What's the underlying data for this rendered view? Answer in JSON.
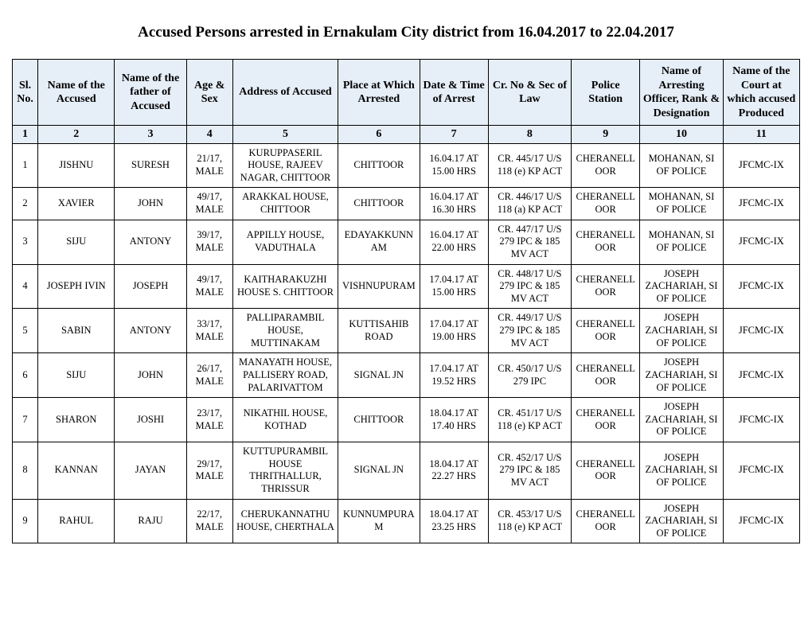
{
  "title": "Accused Persons arrested in    Ernakulam City  district from   16.04.2017 to 22.04.2017",
  "columns": {
    "c1": "Sl. No.",
    "c2": "Name of the Accused",
    "c3": "Name of the father of Accused",
    "c4": "Age & Sex",
    "c5": "Address of Accused",
    "c6": "Place at Which Arrested",
    "c7": "Date & Time of Arrest",
    "c8": "Cr. No & Sec of Law",
    "c9": "Police Station",
    "c10": "Name of Arresting Officer, Rank & Designation",
    "c11": "Name of the Court at which accused Produced"
  },
  "colnums": {
    "c1": "1",
    "c2": "2",
    "c3": "3",
    "c4": "4",
    "c5": "5",
    "c6": "6",
    "c7": "7",
    "c8": "8",
    "c9": "9",
    "c10": "10",
    "c11": "11"
  },
  "rows": [
    {
      "sl": "1",
      "name": "JISHNU",
      "father": "SURESH",
      "age": "21/17, MALE",
      "addr": "KURUPPASERIL HOUSE, RAJEEV NAGAR, CHITTOOR",
      "place": "CHITTOOR",
      "datetime": "16.04.17 AT 15.00 HRS",
      "crno": "CR. 445/17 U/S 118 (e) KP ACT",
      "ps": "CHERANELLOOR",
      "officer": "MOHANAN, SI OF POLICE",
      "court": "JFCMC-IX"
    },
    {
      "sl": "2",
      "name": "XAVIER",
      "father": "JOHN",
      "age": "49/17, MALE",
      "addr": "ARAKKAL HOUSE, CHITTOOR",
      "place": "CHITTOOR",
      "datetime": "16.04.17 AT 16.30 HRS",
      "crno": "CR. 446/17 U/S 118 (a) KP ACT",
      "ps": "CHERANELLOOR",
      "officer": "MOHANAN, SI OF POLICE",
      "court": "JFCMC-IX"
    },
    {
      "sl": "3",
      "name": "SIJU",
      "father": "ANTONY",
      "age": "39/17, MALE",
      "addr": "APPILLY HOUSE, VADUTHALA",
      "place": "EDAYAKKUNNAM",
      "datetime": "16.04.17 AT 22.00 HRS",
      "crno": "CR. 447/17 U/S 279 IPC & 185 MV ACT",
      "ps": "CHERANELLOOR",
      "officer": "MOHANAN, SI OF POLICE",
      "court": "JFCMC-IX"
    },
    {
      "sl": "4",
      "name": "JOSEPH IVIN",
      "father": "JOSEPH",
      "age": "49/17, MALE",
      "addr": "KAITHARAKUZHI HOUSE S. CHITTOOR",
      "place": "VISHNUPURAM",
      "datetime": "17.04.17 AT 15.00 HRS",
      "crno": "CR. 448/17 U/S 279 IPC & 185 MV ACT",
      "ps": "CHERANELLOOR",
      "officer": "JOSEPH ZACHARIAH, SI OF POLICE",
      "court": "JFCMC-IX"
    },
    {
      "sl": "5",
      "name": "SABIN",
      "father": "ANTONY",
      "age": "33/17, MALE",
      "addr": "PALLIPARAMBIL HOUSE, MUTTINAKAM",
      "place": "KUTTISAHIB ROAD",
      "datetime": "17.04.17 AT 19.00 HRS",
      "crno": "CR. 449/17 U/S 279 IPC & 185 MV ACT",
      "ps": "CHERANELLOOR",
      "officer": "JOSEPH ZACHARIAH, SI OF POLICE",
      "court": "JFCMC-IX"
    },
    {
      "sl": "6",
      "name": "SIJU",
      "father": "JOHN",
      "age": "26/17, MALE",
      "addr": "MANAYATH HOUSE, PALLISERY ROAD, PALARIVATTOM",
      "place": "SIGNAL JN",
      "datetime": "17.04.17 AT 19.52 HRS",
      "crno": "CR. 450/17 U/S 279 IPC",
      "ps": "CHERANELLOOR",
      "officer": "JOSEPH ZACHARIAH, SI OF POLICE",
      "court": "JFCMC-IX"
    },
    {
      "sl": "7",
      "name": "SHARON",
      "father": "JOSHI",
      "age": "23/17, MALE",
      "addr": "NIKATHIL HOUSE, KOTHAD",
      "place": "CHITTOOR",
      "datetime": "18.04.17 AT 17.40 HRS",
      "crno": "CR. 451/17 U/S 118 (e) KP ACT",
      "ps": "CHERANELLOOR",
      "officer": "JOSEPH ZACHARIAH, SI OF POLICE",
      "court": "JFCMC-IX"
    },
    {
      "sl": "8",
      "name": "KANNAN",
      "father": "JAYAN",
      "age": "29/17, MALE",
      "addr": "KUTTUPURAMBIL HOUSE THRITHALLUR, THRISSUR",
      "place": "SIGNAL JN",
      "datetime": "18.04.17 AT 22.27 HRS",
      "crno": "CR. 452/17 U/S 279 IPC & 185 MV ACT",
      "ps": "CHERANELLOOR",
      "officer": "JOSEPH ZACHARIAH, SI OF POLICE",
      "court": "JFCMC-IX"
    },
    {
      "sl": "9",
      "name": "RAHUL",
      "father": "RAJU",
      "age": "22/17, MALE",
      "addr": "CHERUKANNATHU HOUSE, CHERTHALA",
      "place": "KUNNUMPURAM",
      "datetime": "18.04.17 AT 23.25 HRS",
      "crno": "CR. 453/17 U/S 118 (e) KP ACT",
      "ps": "CHERANELLOOR",
      "officer": "JOSEPH ZACHARIAH, SI OF POLICE",
      "court": "JFCMC-IX"
    }
  ],
  "style": {
    "header_bg": "#e6eef7",
    "border_color": "#000000",
    "font_family": "Times New Roman",
    "title_fontsize": 19,
    "header_fontsize": 14,
    "cell_fontsize": 12.5
  }
}
